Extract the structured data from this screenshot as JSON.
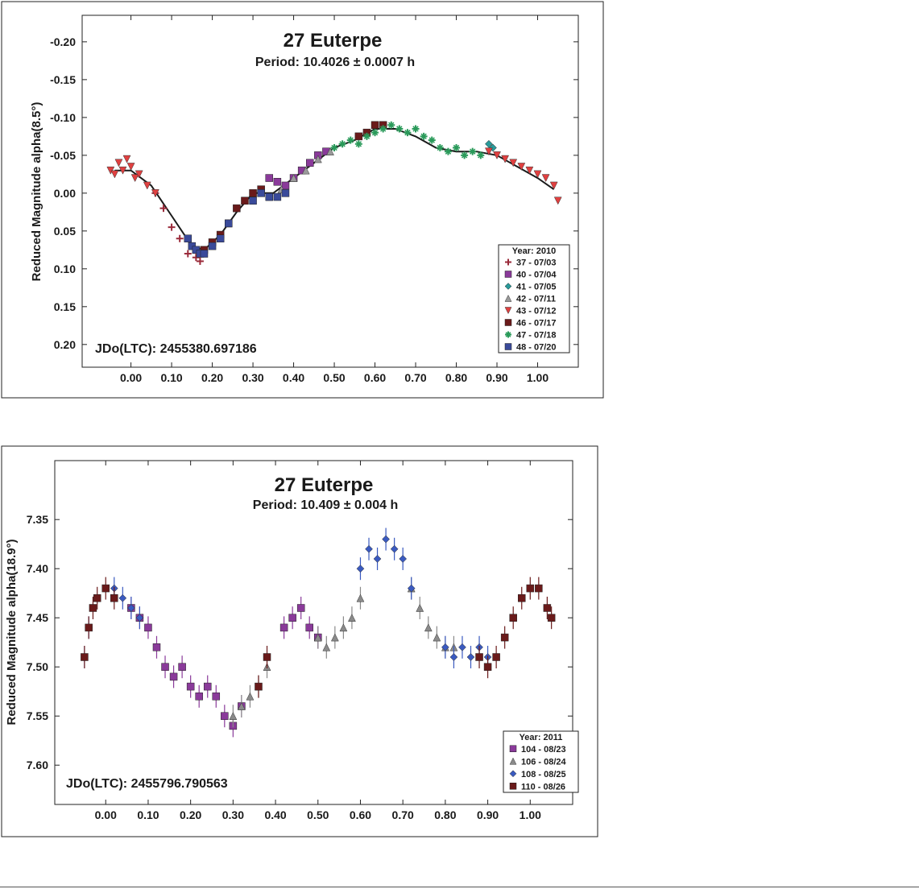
{
  "chart_data": [
    {
      "type": "scatter",
      "title": "27 Euterpe",
      "subtitle": "Period: 10.4026 ± 0.0007 h",
      "ylabel": "Reduced Magnitude alpha(8.5°)",
      "xlabel": "",
      "annotation": "JDo(LTC): 2455380.697186",
      "xlim": [
        -0.12,
        1.1
      ],
      "ylim": [
        0.23,
        -0.235
      ],
      "y_inverted": true,
      "x_ticks": [
        "0.00",
        "0.10",
        "0.20",
        "0.30",
        "0.40",
        "0.50",
        "0.60",
        "0.70",
        "0.80",
        "0.90",
        "1.00"
      ],
      "y_ticks": [
        "-0.20",
        "-0.15",
        "-0.10",
        "-0.05",
        "0.00",
        "0.05",
        "0.10",
        "0.15",
        "0.20"
      ],
      "legend": {
        "title": "Year: 2010",
        "position": "bottom-right"
      },
      "fit_curve": {
        "color": "#1a1a1a",
        "x": [
          -0.04,
          0.0,
          0.05,
          0.1,
          0.15,
          0.18,
          0.22,
          0.26,
          0.3,
          0.35,
          0.4,
          0.45,
          0.5,
          0.55,
          0.6,
          0.65,
          0.7,
          0.75,
          0.8,
          0.85,
          0.9,
          0.95,
          1.0,
          1.04
        ],
        "y": [
          -0.03,
          -0.03,
          -0.01,
          0.03,
          0.07,
          0.075,
          0.055,
          0.025,
          0.0,
          0.0,
          -0.02,
          -0.04,
          -0.06,
          -0.07,
          -0.085,
          -0.085,
          -0.075,
          -0.06,
          -0.055,
          -0.055,
          -0.05,
          -0.035,
          -0.02,
          -0.005
        ]
      },
      "series": [
        {
          "name": "37 - 07/03",
          "color": "#9a2a3a",
          "marker": "plus",
          "x": [
            0.06,
            0.08,
            0.1,
            0.12,
            0.14,
            0.16,
            0.17
          ],
          "y": [
            0.0,
            0.02,
            0.045,
            0.06,
            0.08,
            0.085,
            0.09
          ]
        },
        {
          "name": "40 - 07/04",
          "color": "#8a3a9a",
          "marker": "square",
          "x": [
            0.34,
            0.36,
            0.38,
            0.4,
            0.42,
            0.44,
            0.46,
            0.48
          ],
          "y": [
            -0.02,
            -0.015,
            -0.01,
            -0.02,
            -0.03,
            -0.04,
            -0.05,
            -0.055
          ]
        },
        {
          "name": "41 - 07/05",
          "color": "#2a9a9a",
          "marker": "diamond",
          "x": [
            0.88,
            0.89
          ],
          "y": [
            -0.065,
            -0.06
          ]
        },
        {
          "name": "42 - 07/11",
          "color": "#9a9a9a",
          "marker": "triangle",
          "x": [
            0.34,
            0.37,
            0.4,
            0.43,
            0.46,
            0.49
          ],
          "y": [
            0.005,
            -0.005,
            -0.02,
            -0.03,
            -0.045,
            -0.055
          ]
        },
        {
          "name": "43 - 07/12",
          "color": "#e04040",
          "marker": "triangle-down",
          "x": [
            -0.05,
            -0.04,
            -0.03,
            -0.02,
            -0.01,
            0.0,
            0.01,
            0.02,
            0.04,
            0.06,
            0.88,
            0.9,
            0.92,
            0.94,
            0.96,
            0.98,
            1.0,
            1.02,
            1.04,
            1.05
          ],
          "y": [
            -0.03,
            -0.025,
            -0.04,
            -0.03,
            -0.045,
            -0.035,
            -0.02,
            -0.025,
            -0.01,
            0.0,
            -0.055,
            -0.05,
            -0.045,
            -0.04,
            -0.035,
            -0.03,
            -0.025,
            -0.02,
            -0.01,
            0.01
          ]
        },
        {
          "name": "46 - 07/17",
          "color": "#6a1a1a",
          "marker": "square",
          "x": [
            0.18,
            0.2,
            0.22,
            0.24,
            0.26,
            0.28,
            0.3,
            0.32,
            0.56,
            0.58,
            0.6,
            0.62
          ],
          "y": [
            0.075,
            0.065,
            0.055,
            0.04,
            0.02,
            0.01,
            0.0,
            -0.005,
            -0.075,
            -0.08,
            -0.09,
            -0.09
          ]
        },
        {
          "name": "47 - 07/18",
          "color": "#2a9a5a",
          "marker": "star",
          "x": [
            0.5,
            0.52,
            0.54,
            0.56,
            0.58,
            0.6,
            0.62,
            0.64,
            0.66,
            0.68,
            0.7,
            0.72,
            0.74,
            0.76,
            0.78,
            0.8,
            0.82,
            0.84,
            0.86
          ],
          "y": [
            -0.06,
            -0.065,
            -0.07,
            -0.065,
            -0.075,
            -0.08,
            -0.085,
            -0.09,
            -0.085,
            -0.08,
            -0.085,
            -0.075,
            -0.07,
            -0.06,
            -0.055,
            -0.06,
            -0.05,
            -0.055,
            -0.05
          ]
        },
        {
          "name": "48 - 07/20",
          "color": "#3a4a9a",
          "marker": "square",
          "x": [
            0.14,
            0.15,
            0.16,
            0.17,
            0.18,
            0.2,
            0.22,
            0.24,
            0.3,
            0.32,
            0.34,
            0.36,
            0.38
          ],
          "y": [
            0.06,
            0.07,
            0.075,
            0.08,
            0.08,
            0.07,
            0.06,
            0.04,
            0.01,
            0.0,
            0.005,
            0.005,
            0.0
          ]
        }
      ]
    },
    {
      "type": "scatter",
      "title": "27 Euterpe",
      "subtitle": "Period: 10.409 ± 0.004 h",
      "ylabel": "Reduced Magnitude alpha(18.9°)",
      "xlabel": "",
      "annotation": "JDo(LTC): 2455796.790563",
      "xlim": [
        -0.12,
        1.1
      ],
      "ylim": [
        7.64,
        7.29
      ],
      "y_inverted": true,
      "x_ticks": [
        "0.00",
        "0.10",
        "0.20",
        "0.30",
        "0.40",
        "0.50",
        "0.60",
        "0.70",
        "0.80",
        "0.90",
        "1.00"
      ],
      "y_ticks": [
        "7.35",
        "7.40",
        "7.45",
        "7.50",
        "7.55",
        "7.60"
      ],
      "legend": {
        "title": "Year: 2011",
        "position": "bottom-right"
      },
      "series": [
        {
          "name": "104 - 08/23",
          "color": "#8a3a9a",
          "marker": "square",
          "x": [
            0.06,
            0.08,
            0.1,
            0.12,
            0.14,
            0.16,
            0.18,
            0.2,
            0.22,
            0.24,
            0.26,
            0.28,
            0.3,
            0.32,
            0.42,
            0.44,
            0.46,
            0.48,
            0.5
          ],
          "y": [
            7.44,
            7.45,
            7.46,
            7.48,
            7.5,
            7.51,
            7.5,
            7.52,
            7.53,
            7.52,
            7.53,
            7.55,
            7.56,
            7.54,
            7.46,
            7.45,
            7.44,
            7.46,
            7.47
          ]
        },
        {
          "name": "106 - 08/24",
          "color": "#8a8a8a",
          "marker": "triangle",
          "x": [
            0.3,
            0.32,
            0.34,
            0.36,
            0.38,
            0.5,
            0.52,
            0.54,
            0.56,
            0.58,
            0.6,
            0.72,
            0.74,
            0.76,
            0.78,
            0.8,
            0.82
          ],
          "y": [
            7.55,
            7.54,
            7.53,
            7.52,
            7.5,
            7.47,
            7.48,
            7.47,
            7.46,
            7.45,
            7.43,
            7.42,
            7.44,
            7.46,
            7.47,
            7.48,
            7.48
          ]
        },
        {
          "name": "108 - 08/25",
          "color": "#3a5ac0",
          "marker": "diamond",
          "x": [
            -0.05,
            -0.04,
            0.02,
            0.04,
            0.06,
            0.08,
            0.6,
            0.62,
            0.64,
            0.66,
            0.68,
            0.7,
            0.72,
            0.8,
            0.82,
            0.84,
            0.86,
            0.88,
            0.9
          ],
          "y": [
            7.49,
            7.46,
            7.42,
            7.43,
            7.44,
            7.45,
            7.4,
            7.38,
            7.39,
            7.37,
            7.38,
            7.39,
            7.42,
            7.48,
            7.49,
            7.48,
            7.49,
            7.48,
            7.49
          ]
        },
        {
          "name": "110 - 08/26",
          "color": "#6a1a1a",
          "marker": "square",
          "x": [
            -0.05,
            -0.04,
            -0.03,
            -0.02,
            0.0,
            0.02,
            0.36,
            0.38,
            0.88,
            0.9,
            0.92,
            0.94,
            0.96,
            0.98,
            1.0,
            1.02,
            1.04,
            1.05
          ],
          "y": [
            7.49,
            7.46,
            7.44,
            7.43,
            7.42,
            7.43,
            7.52,
            7.49,
            7.49,
            7.5,
            7.49,
            7.47,
            7.45,
            7.43,
            7.42,
            7.42,
            7.44,
            7.45
          ]
        }
      ]
    }
  ]
}
